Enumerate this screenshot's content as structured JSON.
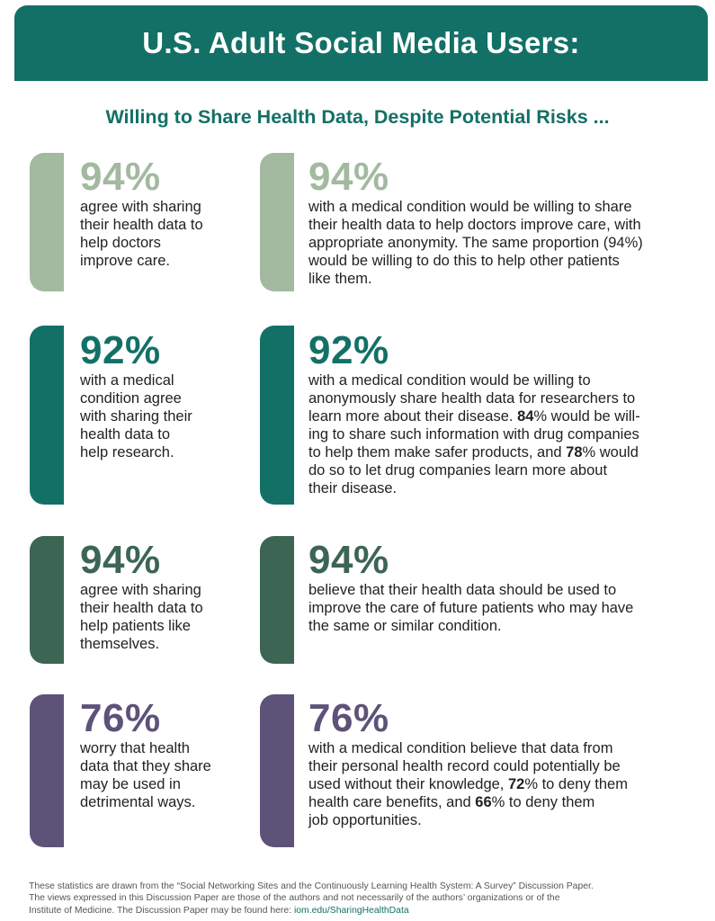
{
  "header": {
    "title": "U.S. Adult Social Media Users:"
  },
  "subtitle": "Willing to Share Health Data, Despite Potential Risks ...",
  "colors": {
    "sage": "#a3b9a0",
    "teal": "#137066",
    "forest": "#3c6554",
    "purple": "#5d5379"
  },
  "rows": [
    {
      "color": "sage",
      "left": {
        "percent": "94%",
        "lines": [
          "agree with sharing",
          "their health data to",
          "help doctors",
          "improve care."
        ]
      },
      "right": {
        "percent": "94%",
        "lines": [
          "with a medical condition would be willing to share",
          "their health data to help doctors improve care, with",
          "appropriate anonymity. The same proportion (94%)",
          "would be willing to do this to help other patients",
          "like them."
        ]
      }
    },
    {
      "color": "teal",
      "left": {
        "percent": "92%",
        "lines": [
          "with a medical",
          "condition agree",
          "with sharing their",
          "health data to",
          "help research."
        ]
      },
      "right": {
        "percent": "92%",
        "line1": "with a medical condition would be willing to",
        "line2": "anonymously share health data for researchers to",
        "line3_pre": "learn more about their disease. ",
        "stat_a": "84",
        "line3_post": "% would be will-",
        "line4": "ing to share such information with drug companies",
        "line5_pre": "to help them make safer products, and ",
        "stat_b": "78",
        "line5_post": "% would",
        "line6": "do so to let drug companies learn more about",
        "line7": "their disease."
      }
    },
    {
      "color": "forest",
      "left": {
        "percent": "94%",
        "lines": [
          "agree with sharing",
          "their health data to",
          "help patients like",
          "themselves."
        ]
      },
      "right": {
        "percent": "94%",
        "lines": [
          "believe that their health data should be used to",
          "improve the care of future patients who may have",
          "the same or similar condition."
        ]
      }
    },
    {
      "color": "purple",
      "left": {
        "percent": "76%",
        "lines": [
          "worry that health",
          "data that they share",
          "may be used in",
          "detrimental ways."
        ]
      },
      "right": {
        "percent": "76%",
        "line1": "with a medical condition believe that data from",
        "line2": "their personal health record could potentially be",
        "line3_pre": "used without their knowledge, ",
        "stat_a": "72",
        "line3_post": "% to deny them",
        "line4_pre": "health care benefits, and ",
        "stat_b": "66",
        "line4_post": "% to deny them",
        "line5": "job opportunities."
      }
    }
  ],
  "footer": {
    "line1": "These statistics are drawn from the “Social Networking Sites and the Continuously Learning Health System: A Survey” Discussion Paper.",
    "line2": "The views expressed in this Discussion Paper are those of the authors and not necessarily of the authors’ organizations or of the",
    "line3_pre": "Institute of Medicine. The Discussion Paper may be found here: ",
    "link": "iom.edu/SharingHealthData"
  }
}
